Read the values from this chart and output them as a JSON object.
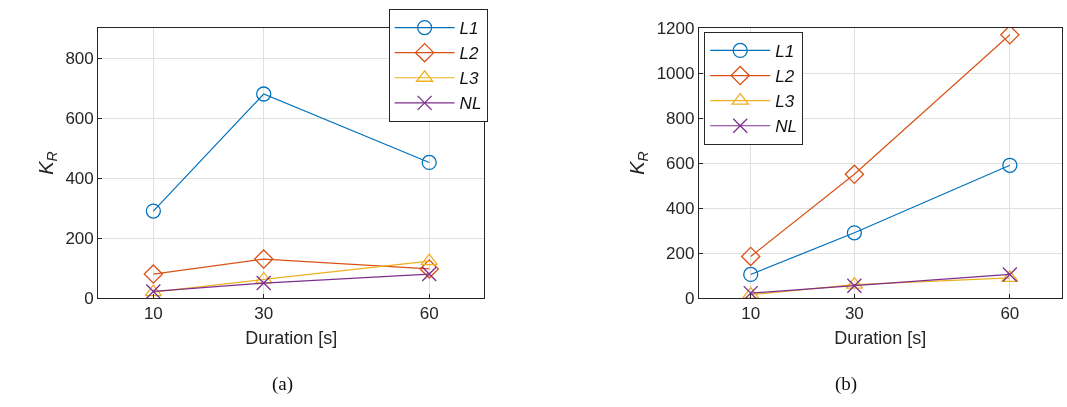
{
  "chart_data": [
    {
      "type": "line",
      "x": [
        10,
        30,
        60
      ],
      "xlim": [
        0,
        70
      ],
      "xticks": [
        10,
        30,
        60
      ],
      "ylim": [
        0,
        900
      ],
      "yticks": [
        0,
        200,
        400,
        600,
        800
      ],
      "xlabel": "Duration [s]",
      "ylabel": "K$_{R}$",
      "grid": true,
      "legend": "top right",
      "annotations": [
        "(a)"
      ],
      "series": [
        {
          "name": "L1",
          "color": "#0072bd",
          "marker": "circle",
          "values": [
            290,
            680,
            452
          ]
        },
        {
          "name": "L2",
          "color": "#d95319",
          "marker": "diamond",
          "values": [
            80,
            130,
            97
          ]
        },
        {
          "name": "L3",
          "color": "#edb120",
          "marker": "triangle",
          "values": [
            20,
            62,
            123
          ]
        },
        {
          "name": "NL",
          "color": "#7e2f8e",
          "marker": "cross",
          "values": [
            22,
            50,
            80
          ]
        }
      ]
    },
    {
      "type": "line",
      "x": [
        10,
        30,
        60
      ],
      "xlim": [
        0,
        70
      ],
      "xticks": [
        10,
        30,
        60
      ],
      "ylim": [
        0,
        1200
      ],
      "yticks": [
        0,
        200,
        400,
        600,
        800,
        1000,
        1200
      ],
      "xlabel": "Duration [s]",
      "ylabel": "K$_{R}$",
      "grid": true,
      "legend": "top left",
      "annotations": [
        "(b)"
      ],
      "series": [
        {
          "name": "L1",
          "color": "#0072bd",
          "marker": "circle",
          "values": [
            105,
            290,
            590
          ]
        },
        {
          "name": "L2",
          "color": "#d95319",
          "marker": "diamond",
          "values": [
            185,
            550,
            1170
          ]
        },
        {
          "name": "L3",
          "color": "#edb120",
          "marker": "triangle",
          "values": [
            15,
            60,
            90
          ]
        },
        {
          "name": "NL",
          "color": "#7e2f8e",
          "marker": "cross",
          "values": [
            22,
            55,
            105
          ]
        }
      ]
    }
  ]
}
